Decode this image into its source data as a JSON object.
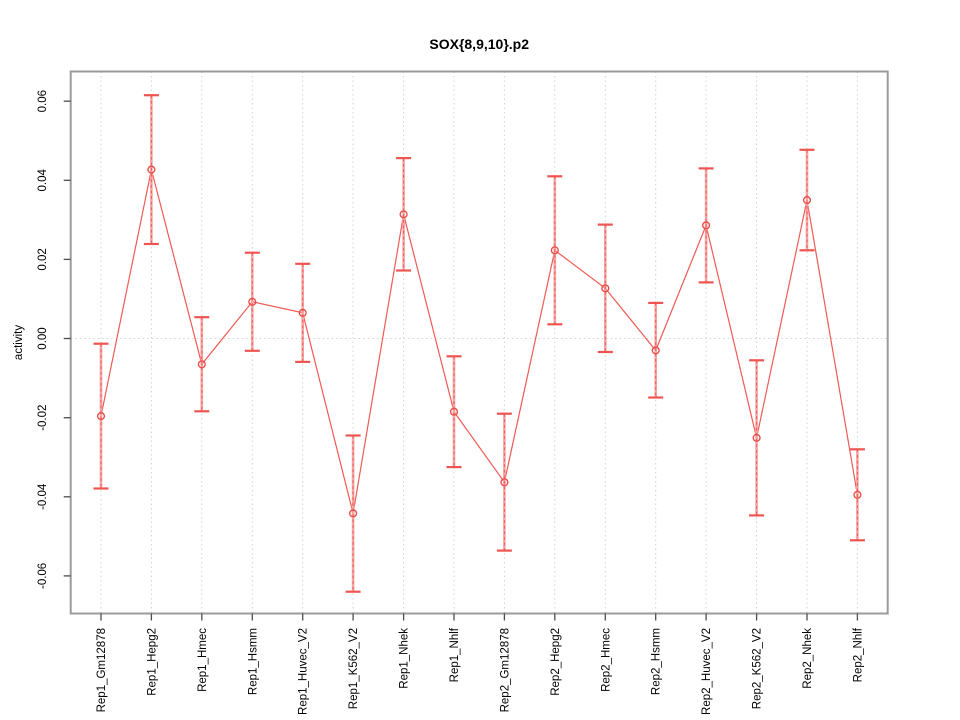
{
  "title": "SOX{8,9,10}.p2",
  "chart_data": {
    "type": "line",
    "title": "SOX{8,9,10}.p2",
    "xlabel": "",
    "ylabel": "activity",
    "ylim": [
      -0.0695,
      0.0675
    ],
    "yticks": [
      -0.06,
      -0.04,
      -0.02,
      0.0,
      0.02,
      0.04,
      0.06
    ],
    "ytick_labels": [
      "-0.06",
      "-0.04",
      "-0.02",
      "0.00",
      "0.02",
      "0.04",
      "0.06"
    ],
    "grid": "vertical dotted gridline at each category; horizontal dotted line at 0",
    "legend_position": "none",
    "marker": "open-circle",
    "error_bars": true,
    "categories": [
      "Rep1_Gm12878",
      "Rep1_Hepg2",
      "Rep1_Hmec",
      "Rep1_Hsmm",
      "Rep1_Huvec_V2",
      "Rep1_K562_V2",
      "Rep1_Nhek",
      "Rep1_Nhlf",
      "Rep2_Gm12878",
      "Rep2_Hepg2",
      "Rep2_Hmec",
      "Rep2_Hsmm",
      "Rep2_Huvec_V2",
      "Rep2_K562_V2",
      "Rep2_Nhek",
      "Rep2_Nhlf"
    ],
    "series": [
      {
        "name": "activity",
        "values": [
          -0.0196,
          0.0427,
          -0.0065,
          0.0093,
          0.0065,
          -0.0442,
          0.0314,
          -0.0185,
          -0.0363,
          0.0223,
          0.0127,
          -0.003,
          0.0286,
          -0.0251,
          0.035,
          -0.0395
        ],
        "err_high": [
          -0.0013,
          0.0615,
          0.0054,
          0.0217,
          0.0189,
          -0.0245,
          0.0456,
          -0.0045,
          -0.019,
          0.041,
          0.0288,
          0.009,
          0.043,
          -0.0055,
          0.0477,
          -0.028
        ],
        "err_low": [
          -0.0379,
          0.0239,
          -0.0184,
          -0.0031,
          -0.0059,
          -0.064,
          0.0172,
          -0.0325,
          -0.0536,
          0.0036,
          -0.0034,
          -0.0149,
          0.0142,
          -0.0447,
          0.0223,
          -0.051
        ]
      }
    ],
    "colors": {
      "line": "#ef5a55",
      "marker": "#e94f4a",
      "error_shaft": "#f5a6a4",
      "error_dash": "#ee4f4a",
      "error_cap": "#ee5550",
      "box": "#9b9b9b",
      "grid": "#d2d2d2",
      "tick": "#4d4d4d",
      "text": "#000000",
      "background": "#ffffff"
    }
  }
}
